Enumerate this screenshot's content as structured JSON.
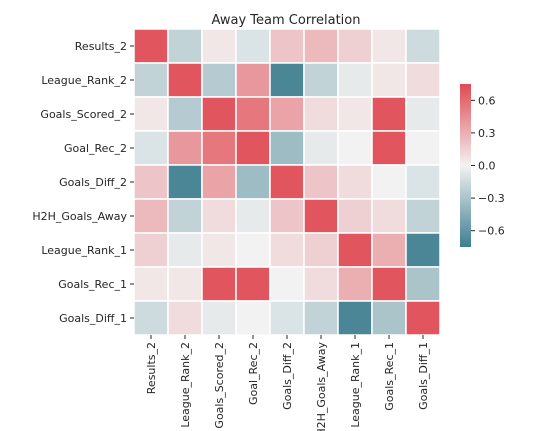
{
  "chart_data": {
    "type": "heatmap",
    "title": "Away Team Correlation",
    "xlabel": "",
    "ylabel": "",
    "rows": [
      "Results_2",
      "League_Rank_2",
      "Goals_Scored_2",
      "Goal_Rec_2",
      "Goals_Diff_2",
      "H2H_Goals_Away",
      "League_Rank_1",
      "Goals_Rec_1",
      "Goals_Diff_1"
    ],
    "columns": [
      "Results_2",
      "League_Rank_2",
      "Goals_Scored_2",
      "Goal_Rec_2",
      "Goals_Diff_2",
      "H2H_Goals_Away",
      "League_Rank_1",
      "Goals_Rec_1",
      "Goals_Diff_1"
    ],
    "values": [
      [
        0.7,
        -0.2,
        0.05,
        -0.1,
        0.2,
        0.25,
        0.15,
        0.05,
        -0.15
      ],
      [
        -0.2,
        0.7,
        -0.25,
        0.4,
        -0.7,
        -0.2,
        -0.05,
        0.05,
        0.1
      ],
      [
        0.05,
        -0.25,
        0.7,
        0.55,
        0.35,
        0.1,
        0.05,
        0.7,
        -0.05
      ],
      [
        -0.1,
        0.4,
        0.55,
        0.7,
        -0.35,
        -0.05,
        0.0,
        0.7,
        0.0
      ],
      [
        0.2,
        -0.7,
        0.35,
        -0.35,
        0.7,
        0.2,
        0.1,
        0.0,
        -0.1
      ],
      [
        0.25,
        -0.2,
        0.1,
        -0.05,
        0.2,
        0.7,
        0.15,
        0.1,
        -0.2
      ],
      [
        0.15,
        -0.05,
        0.05,
        0.0,
        0.1,
        0.15,
        0.7,
        0.3,
        -0.7
      ],
      [
        0.05,
        0.05,
        0.7,
        0.7,
        0.0,
        0.1,
        0.3,
        0.7,
        -0.3
      ],
      [
        -0.15,
        0.1,
        -0.05,
        0.0,
        -0.1,
        -0.2,
        -0.7,
        -0.3,
        0.7
      ]
    ],
    "colorbar": {
      "range": [
        -0.75,
        0.75
      ],
      "ticks": [
        0.6,
        0.3,
        0.0,
        -0.3,
        -0.6
      ],
      "tick_labels": [
        "0.6",
        "0.3",
        "0.0",
        "−0.3",
        "−0.6"
      ],
      "colors": {
        "negative": "#3e7e8f",
        "center": "#f2f2f2",
        "positive": "#e04a53"
      }
    },
    "grid": false,
    "legend": "right"
  }
}
